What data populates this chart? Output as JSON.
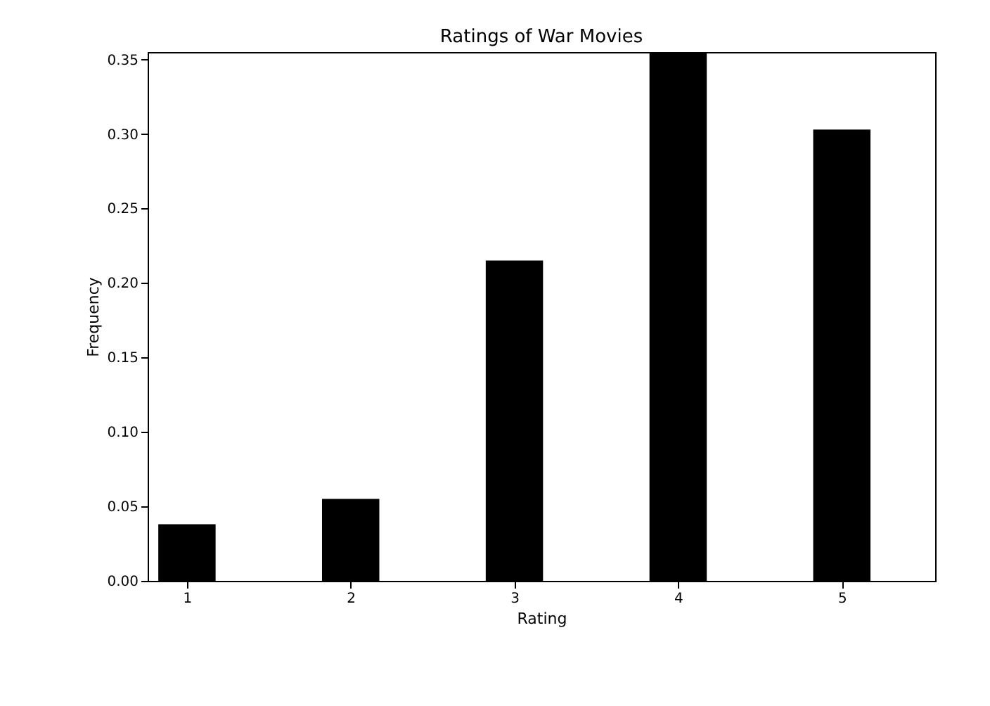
{
  "chart_data": {
    "type": "bar",
    "title": "Ratings of War Movies",
    "xlabel": "Rating",
    "ylabel": "Frequency",
    "x": [
      1,
      2,
      3,
      4,
      5
    ],
    "values": [
      0.038,
      0.055,
      0.215,
      0.355,
      0.303
    ],
    "color": "#000000",
    "xlim": [
      0.76,
      5.57
    ],
    "xticks": [
      1,
      2,
      3,
      4,
      5
    ],
    "ylim": [
      0,
      0.355
    ],
    "yticks": [
      {
        "value": 0,
        "label": "0.00"
      },
      {
        "value": 0.05,
        "label": "0.05"
      },
      {
        "value": 0.1,
        "label": "0.10"
      },
      {
        "value": 0.15,
        "label": "0.15"
      },
      {
        "value": 0.2,
        "label": "0.20"
      },
      {
        "value": 0.25,
        "label": "0.25"
      },
      {
        "value": 0.3,
        "label": "0.30"
      },
      {
        "value": 0.35,
        "label": "0.35"
      }
    ],
    "grid": false
  }
}
